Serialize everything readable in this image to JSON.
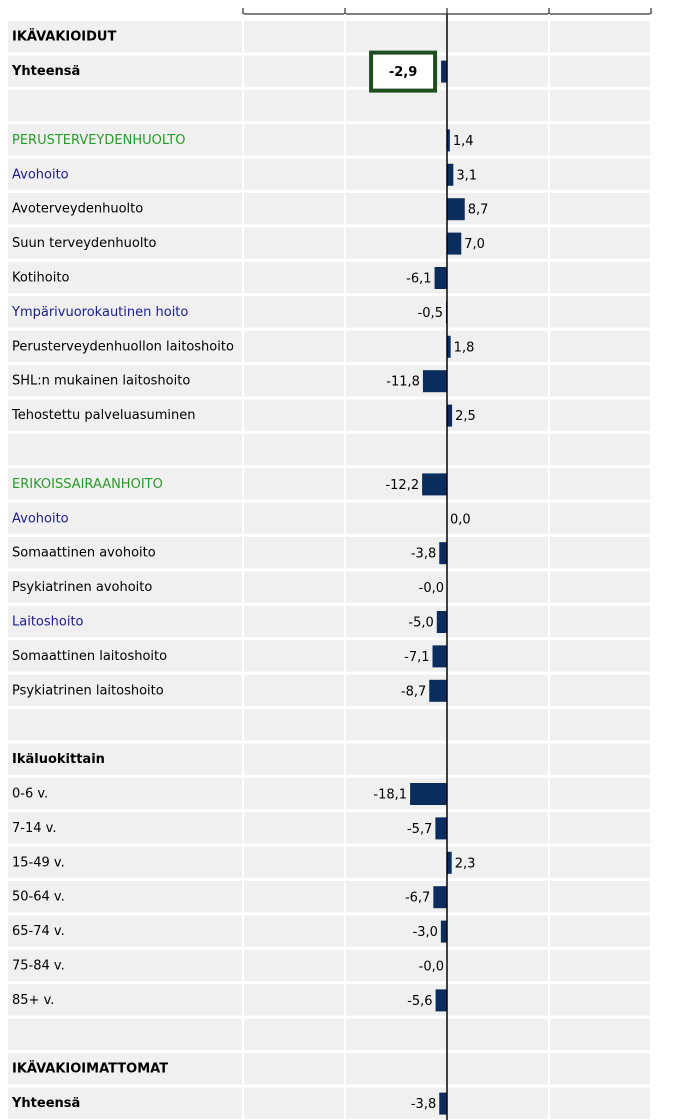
{
  "chart_data": {
    "type": "bar",
    "orientation": "horizontal",
    "categories": [
      "IKÄVAKIOIDUT",
      "Yhteensä",
      null,
      "PERUSTERVEYDENHUOLTO",
      "Avohoito",
      "Avoterveydenhuolto",
      "Suun terveydenhuolto",
      "Kotihoito",
      "Ympärivuorokautinen hoito",
      "Perusterveydenhuollon laitoshoito",
      "SHL:n mukainen laitoshoito",
      "Tehostettu palveluasuminen",
      null,
      "ERIKOISSAIRAANHOITO",
      "Avohoito",
      "Somaattinen avohoito",
      "Psykiatrinen avohoito",
      "Laitoshoito",
      "Somaattinen laitoshoito",
      "Psykiatrinen laitoshoito",
      null,
      "Ikäluokittain",
      "0-6 v.",
      "7-14 v.",
      "15-49 v.",
      "50-64 v.",
      "65-74 v.",
      "75-84 v.",
      "85+ v.",
      null,
      "IKÄVAKIOIMATTOMAT",
      "Yhteensä"
    ],
    "values": [
      null,
      -2.9,
      null,
      1.4,
      3.1,
      8.7,
      7.0,
      -6.1,
      -0.5,
      1.8,
      -11.8,
      2.5,
      null,
      -12.2,
      0.0,
      -3.8,
      -0.0,
      -5.0,
      -7.1,
      -8.7,
      null,
      null,
      -18.1,
      -5.7,
      2.3,
      -6.7,
      -3.0,
      -0.0,
      -5.6,
      null,
      null,
      -3.8
    ],
    "value_labels": [
      null,
      "-2,9",
      null,
      "1,4",
      "3,1",
      "8,7",
      "7,0",
      "-6,1",
      "-0,5",
      "1,8",
      "-11,8",
      "2,5",
      null,
      "-12,2",
      "0,0",
      "-3,8",
      "-0,0",
      "-5,0",
      "-7,1",
      "-8,7",
      null,
      null,
      "-18,1",
      "-5,7",
      "2,3",
      "-6,7",
      "-3,0",
      "-0,0",
      "-5,6",
      null,
      null,
      "-3,8"
    ],
    "category_colors": [
      "#000000",
      "#000000",
      "#000000",
      "#2a9a2a",
      "#1c1c8a",
      "#000000",
      "#000000",
      "#000000",
      "#1c1c8a",
      "#000000",
      "#000000",
      "#000000",
      "#000000",
      "#2a9a2a",
      "#1c1c8a",
      "#000000",
      "#000000",
      "#1c1c8a",
      "#000000",
      "#000000",
      "#000000",
      "#000000",
      "#000000",
      "#000000",
      "#000000",
      "#000000",
      "#000000",
      "#000000",
      "#000000",
      "#000000",
      "#000000",
      "#000000"
    ],
    "category_bold": [
      true,
      true,
      false,
      false,
      false,
      false,
      false,
      false,
      false,
      false,
      false,
      false,
      false,
      false,
      false,
      false,
      false,
      false,
      false,
      false,
      false,
      true,
      false,
      false,
      false,
      false,
      false,
      false,
      false,
      false,
      true,
      true
    ],
    "highlight": 1,
    "color": "#0b2d5e",
    "xlim": [
      -100,
      100
    ],
    "xticks": [
      -100,
      -50,
      0,
      50,
      100
    ],
    "grid": true
  }
}
